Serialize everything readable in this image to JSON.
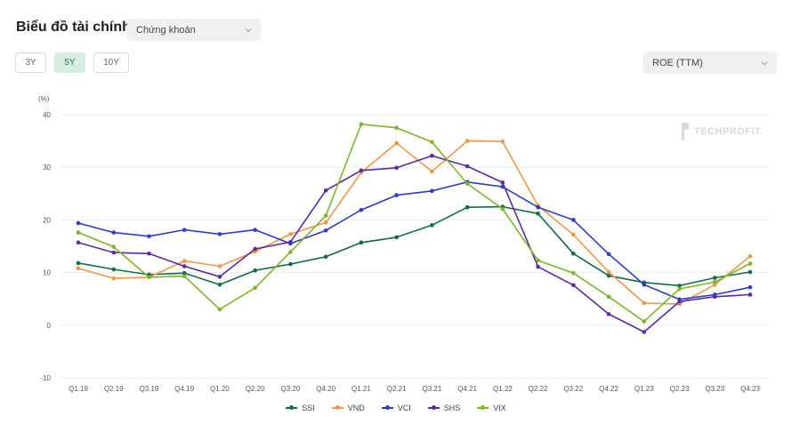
{
  "header": {
    "title": "Biểu đồ tài chính",
    "category_select": {
      "value": "Chứng khoán",
      "icon": "chevron-down-icon"
    },
    "ranges": [
      {
        "label": "3Y",
        "active": false
      },
      {
        "label": "5Y",
        "active": true
      },
      {
        "label": "10Y",
        "active": false
      }
    ],
    "metric_select": {
      "value": "ROE (TTM)",
      "icon": "chevron-down-icon"
    }
  },
  "watermark": {
    "text": "TECHPROFIT",
    "icon": "techprofit-logo-icon"
  },
  "chart_data": {
    "type": "line",
    "ylabel": "(%)",
    "ylim": [
      -10,
      40
    ],
    "yticks": [
      -10,
      0,
      10,
      20,
      30,
      40
    ],
    "grid": "horizontal",
    "legend_position": "bottom-center",
    "categories": [
      "Q1.19",
      "Q2.19",
      "Q3.19",
      "Q4.19",
      "Q1.20",
      "Q2.20",
      "Q3.20",
      "Q4.20",
      "Q1.21",
      "Q2.21",
      "Q3.21",
      "Q4.21",
      "Q1.22",
      "Q2.22",
      "Q3.22",
      "Q4.22",
      "Q1.23",
      "Q2.23",
      "Q3.23",
      "Q4.23"
    ],
    "series": [
      {
        "name": "SSI",
        "color": "#0f6b4a",
        "values": [
          11.8,
          10.6,
          9.6,
          9.9,
          7.7,
          10.4,
          11.6,
          13.0,
          15.7,
          16.7,
          19.0,
          22.4,
          22.5,
          21.2,
          13.6,
          9.4,
          8.1,
          7.5,
          9.0,
          10.1
        ]
      },
      {
        "name": "VND",
        "color": "#f0954a",
        "values": [
          10.8,
          8.9,
          9.1,
          12.2,
          11.2,
          14.0,
          17.3,
          19.5,
          29.0,
          34.6,
          29.2,
          35.0,
          34.9,
          22.7,
          17.2,
          10.1,
          4.2,
          4.0,
          7.7,
          13.1
        ]
      },
      {
        "name": "VCI",
        "color": "#2c3cc7",
        "values": [
          19.4,
          17.6,
          16.9,
          18.1,
          17.3,
          18.1,
          15.5,
          18.0,
          21.9,
          24.7,
          25.5,
          27.2,
          26.3,
          22.4,
          20.0,
          13.5,
          7.7,
          4.9,
          5.8,
          7.2
        ]
      },
      {
        "name": "SHS",
        "color": "#5a2aa3",
        "values": [
          15.7,
          13.8,
          13.6,
          11.2,
          9.2,
          14.5,
          15.8,
          25.6,
          29.4,
          29.9,
          32.2,
          30.2,
          27.1,
          11.1,
          7.6,
          2.1,
          -1.3,
          4.5,
          5.4,
          5.8
        ]
      },
      {
        "name": "VIX",
        "color": "#7db52b",
        "values": [
          17.6,
          14.9,
          9.1,
          9.3,
          3.0,
          7.1,
          13.9,
          20.8,
          38.2,
          37.5,
          34.8,
          26.9,
          22.1,
          12.3,
          9.9,
          5.4,
          0.7,
          6.9,
          8.2,
          11.7
        ]
      }
    ]
  }
}
